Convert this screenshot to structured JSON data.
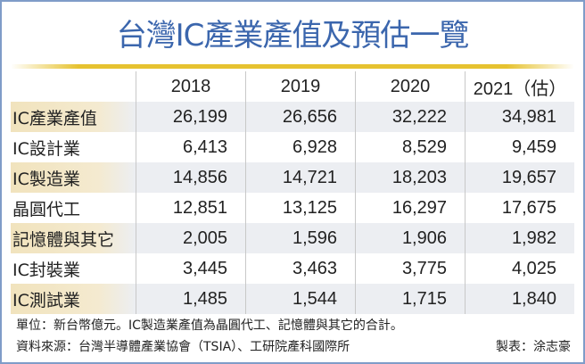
{
  "title": "台灣IC產業產值及預估一覽",
  "colors": {
    "title": "#3b66ad",
    "rule": "#e6c230",
    "border": "#7f9cc8",
    "shade": "#eceef2",
    "label_shade": "#f1e3bd"
  },
  "chart_data": {
    "type": "table",
    "columns": [
      "",
      "2018",
      "2019",
      "2020",
      "2021（估）"
    ],
    "rows": [
      {
        "label": "IC產業產值",
        "values": [
          "26,199",
          "26,656",
          "32,222",
          "34,981"
        ]
      },
      {
        "label": "IC設計業",
        "values": [
          "6,413",
          "6,928",
          "8,529",
          "9,459"
        ]
      },
      {
        "label": "IC製造業",
        "values": [
          "14,856",
          "14,721",
          "18,203",
          "19,657"
        ]
      },
      {
        "label": "晶圓代工",
        "values": [
          "12,851",
          "13,125",
          "16,297",
          "17,675"
        ]
      },
      {
        "label": "記憶體與其它",
        "values": [
          "2,005",
          "1,596",
          "1,906",
          "1,982"
        ]
      },
      {
        "label": "IC封裝業",
        "values": [
          "3,445",
          "3,463",
          "3,775",
          "4,025"
        ]
      },
      {
        "label": "IC測試業",
        "values": [
          "1,485",
          "1,544",
          "1,715",
          "1,840"
        ]
      }
    ]
  },
  "footer": {
    "note": "單位：新台幣億元。IC製造業產值為晶圓代工、記憶體與其它的合計。",
    "source": "資料來源：台灣半導體產業協會（TSIA）、工研院產科國際所",
    "credit": "製表：涂志豪"
  }
}
